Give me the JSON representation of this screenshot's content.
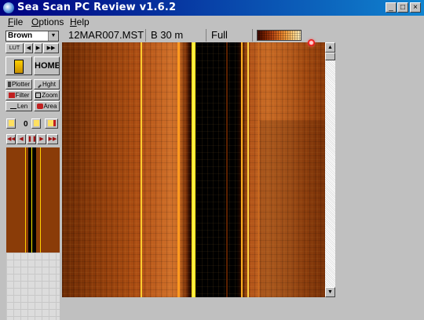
{
  "window": {
    "title": "Sea Scan PC Review v1.6.2",
    "controls": {
      "minimize": "_",
      "maximize": "□",
      "close": "×"
    }
  },
  "menu": {
    "items": [
      "File",
      "Options",
      "Help"
    ]
  },
  "left_panel": {
    "palette_select": "Brown",
    "lut_label": "LUT",
    "home_label": "HOME",
    "tools": {
      "plotter": "Plotter",
      "height": "Hght",
      "filter": "Filter",
      "zoom": "Zoom",
      "length": "Len",
      "area": "Area"
    },
    "mark_count": "0"
  },
  "info_bar": {
    "filename": "12MAR007.MST",
    "range": "B 30 m",
    "zoom_mode": "Full"
  },
  "colors": {
    "title_bar": "#000080",
    "sonar_palette": "brown",
    "marker": "#ff3030"
  }
}
